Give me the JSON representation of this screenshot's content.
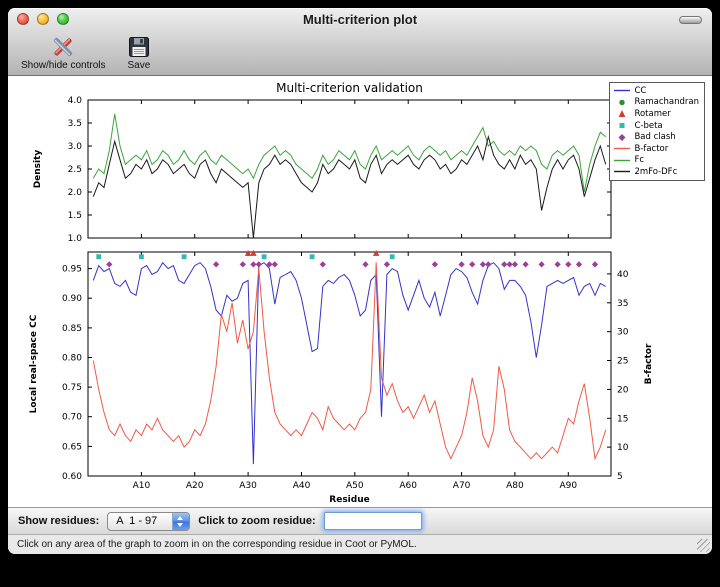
{
  "window": {
    "title": "Multi-criterion plot"
  },
  "toolbar": {
    "show_hide_label": "Show/hide controls",
    "save_label": "Save"
  },
  "legend": {
    "position": "upper right",
    "entries": [
      {
        "label": "CC",
        "type": "line",
        "color": "#3333cc"
      },
      {
        "label": "Ramachandran",
        "type": "circle",
        "color": "#2e8b2e"
      },
      {
        "label": "Rotamer",
        "type": "triangle",
        "color": "#d23b2f"
      },
      {
        "label": "C-beta",
        "type": "square",
        "color": "#35b8ae"
      },
      {
        "label": "Bad clash",
        "type": "diamond",
        "color": "#9c3e9c"
      },
      {
        "label": "B-factor",
        "type": "line",
        "color": "#ef5a48"
      },
      {
        "label": "Fc",
        "type": "line",
        "color": "#3aa63a"
      },
      {
        "label": "2mFo-DFc",
        "type": "line",
        "color": "#1a1a1a"
      }
    ]
  },
  "chart_data": [
    {
      "type": "line",
      "title": "Multi-criterion validation",
      "ylabel": "Density",
      "ylim": [
        1.0,
        4.0
      ],
      "yticks": [
        1.0,
        1.5,
        2.0,
        2.5,
        3.0,
        3.5,
        4.0
      ],
      "x_first_residue": 1,
      "series": [
        {
          "name": "Fc",
          "color": "#3aa63a",
          "values": [
            2.3,
            2.5,
            2.4,
            2.9,
            3.7,
            3.0,
            2.6,
            2.7,
            2.8,
            2.7,
            2.9,
            2.6,
            2.7,
            2.9,
            2.8,
            2.6,
            2.7,
            2.9,
            2.7,
            2.6,
            2.8,
            2.9,
            2.7,
            2.6,
            2.8,
            2.7,
            2.6,
            2.5,
            2.4,
            2.5,
            2.3,
            2.6,
            2.8,
            2.9,
            3.0,
            2.8,
            2.9,
            2.8,
            2.6,
            2.5,
            2.4,
            2.3,
            2.5,
            2.8,
            2.6,
            2.7,
            2.9,
            2.8,
            2.7,
            2.9,
            2.6,
            2.5,
            2.8,
            3.0,
            2.7,
            2.8,
            2.9,
            2.8,
            2.9,
            3.0,
            2.8,
            2.7,
            2.9,
            3.0,
            2.9,
            2.8,
            2.9,
            2.7,
            2.8,
            2.9,
            2.8,
            3.0,
            3.2,
            3.4,
            3.0,
            3.1,
            2.9,
            2.8,
            2.9,
            2.8,
            3.0,
            2.9,
            3.0,
            2.9,
            2.6,
            2.5,
            2.8,
            2.9,
            2.8,
            2.9,
            3.0,
            2.8,
            2.0,
            2.6,
            3.0,
            3.3,
            3.2
          ]
        },
        {
          "name": "2mFo-DFc",
          "color": "#1a1a1a",
          "values": [
            1.9,
            2.2,
            2.1,
            2.6,
            3.1,
            2.7,
            2.3,
            2.4,
            2.6,
            2.5,
            2.7,
            2.4,
            2.5,
            2.7,
            2.6,
            2.4,
            2.5,
            2.6,
            2.4,
            2.3,
            2.6,
            2.7,
            2.4,
            2.2,
            2.5,
            2.4,
            2.3,
            2.2,
            2.1,
            2.2,
            1.0,
            2.2,
            2.5,
            2.6,
            2.8,
            2.6,
            2.7,
            2.6,
            2.4,
            2.2,
            2.1,
            2.0,
            2.2,
            2.6,
            2.4,
            2.5,
            2.7,
            2.6,
            2.5,
            2.7,
            2.3,
            2.2,
            2.6,
            2.8,
            2.4,
            2.6,
            2.7,
            2.6,
            2.7,
            2.8,
            2.6,
            2.5,
            2.7,
            2.8,
            2.7,
            2.5,
            2.6,
            2.4,
            2.5,
            2.7,
            2.6,
            2.8,
            3.0,
            2.7,
            3.2,
            2.8,
            2.6,
            2.5,
            2.7,
            2.5,
            2.8,
            2.6,
            2.7,
            2.5,
            1.6,
            2.1,
            2.5,
            2.7,
            2.5,
            2.7,
            2.8,
            2.5,
            1.9,
            2.3,
            2.7,
            3.0,
            2.6
          ]
        }
      ]
    },
    {
      "type": "line+scatter",
      "xlabel": "Residue",
      "ylabel_left": "Local real-space CC",
      "ylabel_right": "B-factor",
      "xlim": [
        0,
        98
      ],
      "ylim_left": [
        0.6,
        0.978
      ],
      "ylim_right": [
        5,
        43.8
      ],
      "yticks_left": [
        0.6,
        0.65,
        0.7,
        0.75,
        0.8,
        0.85,
        0.9,
        0.95
      ],
      "yticks_right": [
        5,
        10,
        15,
        20,
        25,
        30,
        35,
        40
      ],
      "xticks": [
        {
          "value": 10,
          "label": "A10"
        },
        {
          "value": 20,
          "label": "A20"
        },
        {
          "value": 30,
          "label": "A30"
        },
        {
          "value": 40,
          "label": "A40"
        },
        {
          "value": 50,
          "label": "A50"
        },
        {
          "value": 60,
          "label": "A60"
        },
        {
          "value": 70,
          "label": "A70"
        },
        {
          "value": 80,
          "label": "A80"
        },
        {
          "value": 90,
          "label": "A90"
        }
      ],
      "x_first_residue": 1,
      "series": [
        {
          "name": "CC",
          "axis": "left",
          "color": "#3333cc",
          "values": [
            0.93,
            0.955,
            0.945,
            0.95,
            0.925,
            0.92,
            0.93,
            0.91,
            0.905,
            0.95,
            0.955,
            0.94,
            0.945,
            0.96,
            0.95,
            0.955,
            0.93,
            0.925,
            0.94,
            0.955,
            0.96,
            0.95,
            0.92,
            0.88,
            0.87,
            0.905,
            0.895,
            0.9,
            0.925,
            0.93,
            0.62,
            0.955,
            0.96,
            0.95,
            0.89,
            0.935,
            0.94,
            0.945,
            0.93,
            0.9,
            0.855,
            0.81,
            0.815,
            0.92,
            0.93,
            0.925,
            0.935,
            0.94,
            0.93,
            0.905,
            0.87,
            0.88,
            0.93,
            0.94,
            0.7,
            0.94,
            0.95,
            0.945,
            0.905,
            0.88,
            0.905,
            0.93,
            0.9,
            0.885,
            0.91,
            0.87,
            0.905,
            0.94,
            0.95,
            0.945,
            0.935,
            0.91,
            0.89,
            0.93,
            0.955,
            0.96,
            0.95,
            0.915,
            0.93,
            0.93,
            0.92,
            0.905,
            0.86,
            0.8,
            0.855,
            0.92,
            0.925,
            0.93,
            0.925,
            0.93,
            0.935,
            0.905,
            0.92,
            0.925,
            0.905,
            0.925,
            0.92
          ]
        },
        {
          "name": "B-factor",
          "axis": "right",
          "color": "#ef5a48",
          "values": [
            25,
            20,
            16,
            13,
            12,
            14,
            12,
            11,
            13,
            12,
            14,
            13,
            15,
            13,
            12,
            11,
            12,
            10,
            11,
            13,
            12,
            14,
            18,
            24,
            33,
            30,
            35,
            28,
            32,
            27,
            30,
            41,
            30,
            22,
            16,
            14,
            13,
            12,
            13,
            12,
            14,
            16,
            15,
            13,
            17,
            15,
            14,
            13,
            14,
            13,
            15,
            16,
            20,
            42,
            22,
            19,
            21,
            18,
            16,
            17,
            15,
            17,
            19,
            16,
            18,
            14,
            10,
            8,
            10,
            12,
            16,
            22,
            18,
            12,
            10,
            13,
            24,
            20,
            13,
            11,
            10,
            9,
            8,
            9,
            8,
            9,
            10,
            9,
            12,
            15,
            14,
            18,
            21,
            15,
            8,
            10,
            13
          ]
        }
      ],
      "markers": [
        {
          "name": "Ramachandran",
          "shape": "circle",
          "color": "#2e8b2e",
          "y": 0.976,
          "x": []
        },
        {
          "name": "Rotamer",
          "shape": "triangle",
          "color": "#d23b2f",
          "y": 0.976,
          "x": [
            30,
            31,
            54
          ]
        },
        {
          "name": "C-beta",
          "shape": "square",
          "color": "#35b8ae",
          "y": 0.97,
          "x": [
            2,
            10,
            18,
            33,
            42,
            57
          ]
        },
        {
          "name": "Bad clash",
          "shape": "diamond",
          "color": "#9c3e9c",
          "y": 0.957,
          "x": [
            4,
            24,
            29,
            31,
            32,
            34,
            35,
            44,
            52,
            56,
            65,
            70,
            72,
            74,
            75,
            78,
            79,
            80,
            82,
            85,
            88,
            90,
            92,
            95
          ]
        }
      ]
    }
  ],
  "controls": {
    "show_residues_label": "Show residues:",
    "residue_range_value": "A  1 - 97",
    "zoom_label": "Click to zoom residue:",
    "zoom_input_value": ""
  },
  "status_bar": {
    "text": "Click on any area of the graph to zoom in on the corresponding residue in Coot or PyMOL."
  }
}
